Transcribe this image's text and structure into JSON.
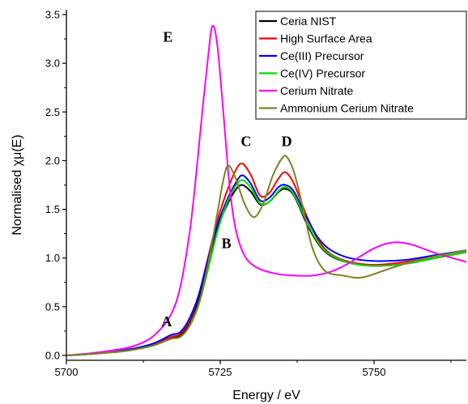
{
  "chart_data": {
    "type": "line",
    "title": "",
    "xlabel": "Energy / eV",
    "ylabel": "Normalised χμ(E)",
    "xlim": [
      5700,
      5765
    ],
    "ylim": [
      -0.05,
      3.55
    ],
    "x_ticks": [
      5700,
      5725,
      5750
    ],
    "y_ticks": [
      0.0,
      0.5,
      1.0,
      1.5,
      2.0,
      2.5,
      3.0,
      3.5
    ],
    "x_tick_labels": [
      "5700",
      "5725",
      "5750"
    ],
    "y_tick_labels": [
      "0.0",
      "0.5",
      "1.0",
      "1.5",
      "2.0",
      "2.5",
      "3.0",
      "3.5"
    ],
    "grid": false,
    "legend_position": "top-right",
    "series": [
      {
        "name": "Ceria NIST",
        "color": "#000000",
        "x": [
          5700,
          5705,
          5710,
          5714,
          5717,
          5718.5,
          5720,
          5721.5,
          5723,
          5724.5,
          5726,
          5727.5,
          5728.6,
          5730,
          5731.5,
          5733,
          5734.5,
          5735.6,
          5737,
          5739,
          5741,
          5743,
          5746,
          5750,
          5755,
          5760,
          5765
        ],
        "y": [
          0.0,
          0.02,
          0.05,
          0.1,
          0.18,
          0.2,
          0.34,
          0.58,
          0.95,
          1.3,
          1.53,
          1.7,
          1.75,
          1.68,
          1.55,
          1.58,
          1.68,
          1.71,
          1.64,
          1.36,
          1.14,
          1.02,
          0.95,
          0.92,
          0.94,
          1.0,
          1.06
        ]
      },
      {
        "name": "High Surface Area",
        "color": "#ff0000",
        "x": [
          5700,
          5705,
          5710,
          5714,
          5717,
          5718.5,
          5720,
          5721.5,
          5723,
          5724.5,
          5726,
          5727.5,
          5728.6,
          5730,
          5731.5,
          5733,
          5734.5,
          5735.6,
          5737,
          5739,
          5741,
          5743,
          5746,
          5750,
          5755,
          5760,
          5765
        ],
        "y": [
          0.0,
          0.02,
          0.05,
          0.11,
          0.19,
          0.22,
          0.36,
          0.62,
          1.0,
          1.38,
          1.67,
          1.9,
          1.97,
          1.85,
          1.64,
          1.67,
          1.82,
          1.88,
          1.76,
          1.44,
          1.18,
          1.04,
          0.96,
          0.93,
          0.96,
          1.02,
          1.08
        ]
      },
      {
        "name": "Ce(III) Precursor",
        "color": "#0000ff",
        "x": [
          5700,
          5705,
          5710,
          5714,
          5717,
          5718.5,
          5720,
          5721.5,
          5723,
          5724.5,
          5726,
          5727.5,
          5728.6,
          5730,
          5731.5,
          5733,
          5734.5,
          5735.6,
          5737,
          5739,
          5741,
          5743,
          5746,
          5750,
          5755,
          5760,
          5765
        ],
        "y": [
          0.0,
          0.02,
          0.06,
          0.12,
          0.21,
          0.24,
          0.38,
          0.62,
          0.98,
          1.33,
          1.58,
          1.77,
          1.85,
          1.76,
          1.59,
          1.62,
          1.73,
          1.75,
          1.68,
          1.42,
          1.2,
          1.08,
          1.0,
          0.97,
          0.98,
          1.03,
          1.08
        ]
      },
      {
        "name": "Ce(IV) Precursor",
        "color": "#00dd00",
        "x": [
          5700,
          5705,
          5710,
          5714,
          5717,
          5718.5,
          5720,
          5721.5,
          5723,
          5724.5,
          5726,
          5727.5,
          5728.6,
          5730,
          5731.5,
          5733,
          5734.5,
          5735.6,
          5737,
          5739,
          5741,
          5743,
          5746,
          5750,
          5755,
          5760,
          5765
        ],
        "y": [
          0.0,
          0.02,
          0.05,
          0.1,
          0.17,
          0.19,
          0.3,
          0.52,
          0.88,
          1.26,
          1.55,
          1.74,
          1.8,
          1.72,
          1.56,
          1.58,
          1.69,
          1.73,
          1.65,
          1.38,
          1.15,
          1.03,
          0.95,
          0.92,
          0.94,
          1.0,
          1.06
        ]
      },
      {
        "name": "Cerium Nitrate",
        "color": "#ff00ff",
        "x": [
          5700,
          5705,
          5710,
          5713,
          5715,
          5717,
          5718.5,
          5720,
          5721,
          5722,
          5723,
          5723.7,
          5724.5,
          5725.5,
          5726.5,
          5727.5,
          5729,
          5731,
          5734,
          5737,
          5740,
          5743,
          5746,
          5750,
          5753,
          5756,
          5760,
          5765
        ],
        "y": [
          0.0,
          0.03,
          0.08,
          0.15,
          0.25,
          0.42,
          0.7,
          1.25,
          1.8,
          2.45,
          3.05,
          3.38,
          3.2,
          2.5,
          1.75,
          1.3,
          1.02,
          0.9,
          0.84,
          0.82,
          0.82,
          0.86,
          0.95,
          1.1,
          1.16,
          1.14,
          1.05,
          0.96
        ]
      },
      {
        "name": "Ammonium Cerium Nitrate",
        "color": "#808020",
        "x": [
          5700,
          5705,
          5710,
          5714,
          5717,
          5718.5,
          5720,
          5721.5,
          5723,
          5724.5,
          5725.5,
          5726.3,
          5727.5,
          5729,
          5730.5,
          5732,
          5733.5,
          5735,
          5735.8,
          5737,
          5738.5,
          5740,
          5742,
          5745,
          5748,
          5752,
          5756,
          5760,
          5765
        ],
        "y": [
          0.0,
          0.02,
          0.05,
          0.1,
          0.17,
          0.19,
          0.3,
          0.53,
          0.93,
          1.45,
          1.8,
          1.95,
          1.82,
          1.55,
          1.42,
          1.56,
          1.84,
          2.02,
          2.04,
          1.88,
          1.5,
          1.1,
          0.87,
          0.82,
          0.8,
          0.88,
          0.96,
          1.02,
          1.08
        ]
      }
    ],
    "annotations": [
      {
        "text": "A",
        "x": 5716.3,
        "y": 0.3
      },
      {
        "text": "B",
        "x": 5726.0,
        "y": 1.1
      },
      {
        "text": "C",
        "x": 5729.2,
        "y": 2.15
      },
      {
        "text": "D",
        "x": 5735.8,
        "y": 2.15
      },
      {
        "text": "E",
        "x": 5716.5,
        "y": 3.22
      }
    ]
  }
}
